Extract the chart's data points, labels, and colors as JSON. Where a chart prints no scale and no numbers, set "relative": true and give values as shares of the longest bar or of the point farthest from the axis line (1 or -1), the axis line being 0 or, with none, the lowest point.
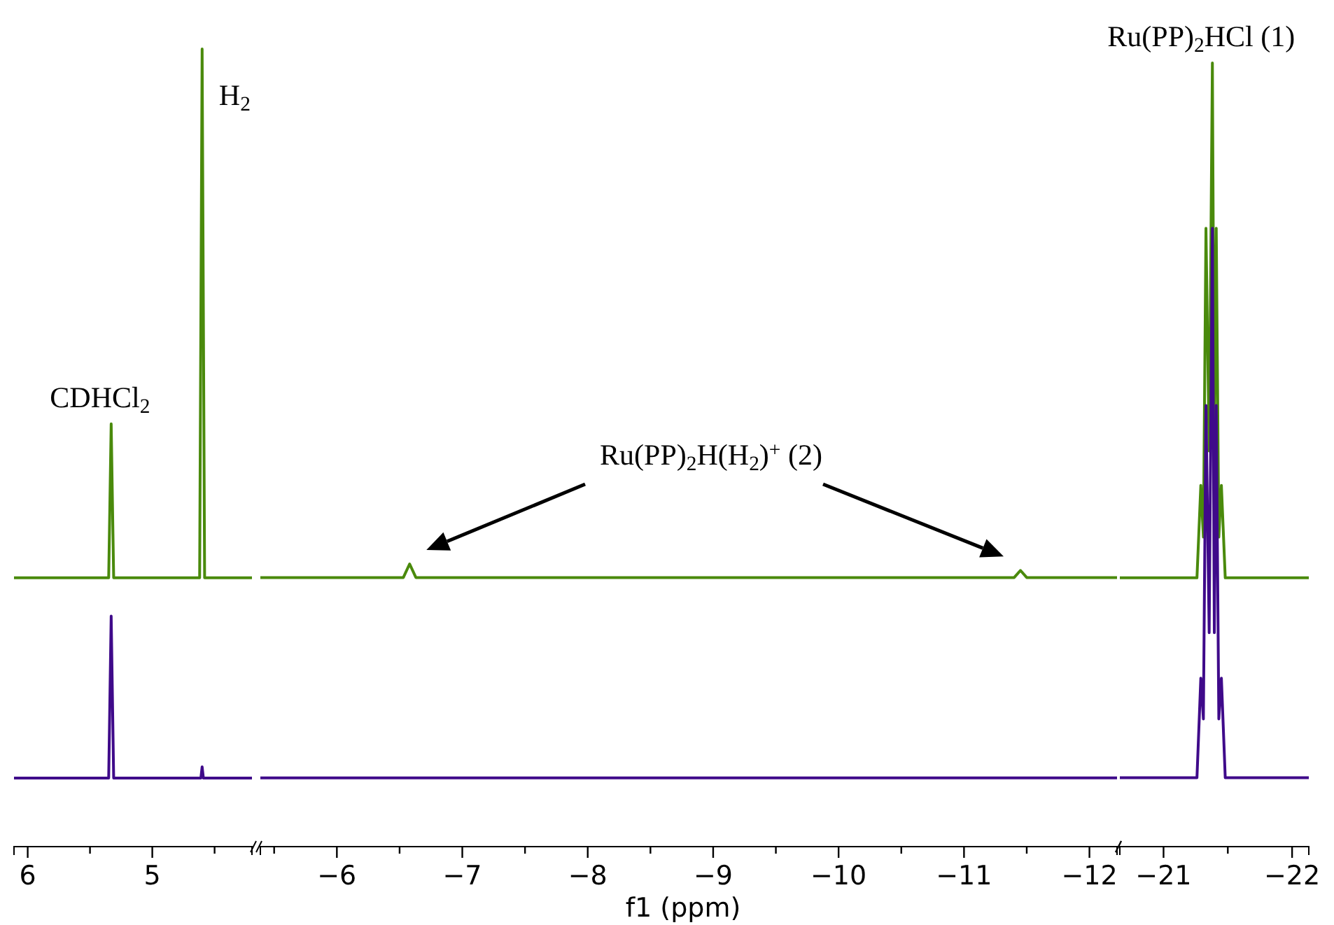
{
  "chart_data": [
    {
      "type": "line",
      "relative": true,
      "xlim": [
        6.11,
        4.2
      ],
      "xticks": [
        6,
        {
          "value": 5.5,
          "label": null
        },
        5,
        {
          "value": 4.5,
          "label": null
        }
      ],
      "series": [
        {
          "color": "#4a8a0c",
          "x": [
            6.11,
            5.35,
            5.33,
            5.31,
            4.62,
            4.6,
            4.58,
            4.2
          ],
          "values": [
            0.337,
            0.337,
            0.53,
            0.337,
            0.337,
            1,
            0.337,
            0.337
          ]
        },
        {
          "color": "#3f0a8a",
          "x": [
            6.11,
            5.35,
            5.33,
            5.31,
            4.61,
            4.6,
            4.59,
            4.2
          ],
          "values": [
            0.086,
            0.086,
            0.289,
            0.086,
            0.086,
            0.1,
            0.086,
            0.086
          ]
        }
      ],
      "annotations": [
        {
          "text": "CDHCl$_{2}$",
          "x": 5.33,
          "y": 0.53
        },
        {
          "text": "H$_{2}$",
          "x": 4.6,
          "y": 1
        }
      ]
    },
    {
      "type": "line",
      "relative": true,
      "xlim": [
        -5.39,
        -12.22
      ],
      "xlabel": "f1 (ppm)",
      "xticks": [
        {
          "value": -5.5,
          "label": null
        },
        -6,
        {
          "value": -6.5,
          "label": null
        },
        -7,
        {
          "value": -7.5,
          "label": null
        },
        -8,
        {
          "value": -8.5,
          "label": null
        },
        -9,
        {
          "value": -9.5,
          "label": null
        },
        -10,
        {
          "value": -10.5,
          "label": null
        },
        -11,
        {
          "value": -11.5,
          "label": null
        },
        -12
      ],
      "series": [
        {
          "color": "#4a8a0c",
          "x": [
            -5.39,
            -6.53,
            -6.58,
            -6.63,
            -11.4,
            -11.45,
            -11.5,
            -12.22
          ],
          "values": [
            0.952,
            0.952,
            1,
            0.952,
            0.952,
            0.977,
            0.952,
            0.952
          ]
        },
        {
          "color": "#3f0a8a",
          "x": [
            -5.39,
            -12.22
          ],
          "values": [
            0.243,
            0.243
          ]
        }
      ],
      "annotations": [
        "Ru(PP)$_{2}$H(H$_{2}$)$^{+}$ (2)"
      ]
    },
    {
      "type": "line",
      "relative": true,
      "xlim": [
        -20.66,
        -22.13
      ],
      "xticks": [
        -21,
        {
          "value": -21.5,
          "label": null
        },
        -22
      ],
      "series": [
        {
          "color": "#4a8a0c",
          "x": [
            -20.66,
            -21.26,
            -21.29,
            -21.31,
            -21.33,
            -21.355,
            -21.38,
            -21.395,
            -21.41,
            -21.43,
            -21.45,
            -21.48,
            -22.13
          ],
          "values": [
            0.343,
            0.343,
            0.461,
            0.395,
            0.789,
            0.505,
            1,
            0.505,
            0.789,
            0.395,
            0.461,
            0.343,
            0.343
          ]
        },
        {
          "color": "#3f0a8a",
          "x": [
            -20.66,
            -21.26,
            -21.29,
            -21.31,
            -21.33,
            -21.355,
            -21.38,
            -21.395,
            -21.41,
            -21.43,
            -21.45,
            -21.48,
            -22.13
          ],
          "values": [
            0.088,
            0.088,
            0.215,
            0.163,
            0.563,
            0.273,
            0.789,
            0.273,
            0.563,
            0.163,
            0.215,
            0.088,
            0.088
          ]
        }
      ],
      "annotations": [
        {
          "text": "Ru(PP)$_{2}$HCl (1)",
          "x": -21.38,
          "y": 1
        }
      ]
    }
  ]
}
